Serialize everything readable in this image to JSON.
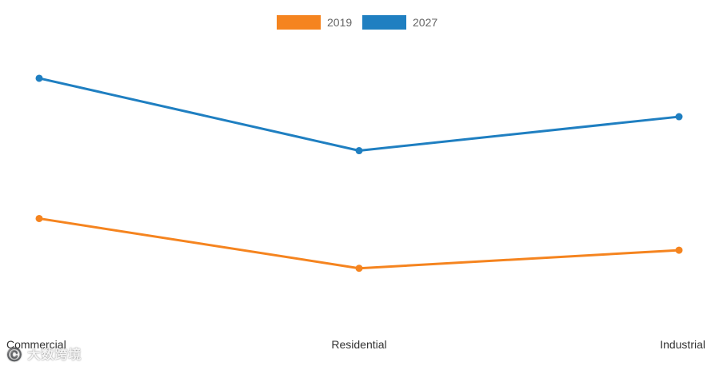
{
  "chart_data": {
    "type": "line",
    "categories": [
      "Commercial",
      "Residential",
      "Industrial"
    ],
    "series": [
      {
        "name": "2019",
        "color": "#f5841f",
        "values": [
          8.4,
          6.2,
          7.0
        ]
      },
      {
        "name": "2027",
        "color": "#1f7fc1",
        "values": [
          14.6,
          11.4,
          12.9
        ]
      }
    ],
    "ylim": [
      4,
      17
    ],
    "legend": "top-center",
    "grid": false,
    "show_y_axis": false
  },
  "watermark": "©️ 大数跨境"
}
